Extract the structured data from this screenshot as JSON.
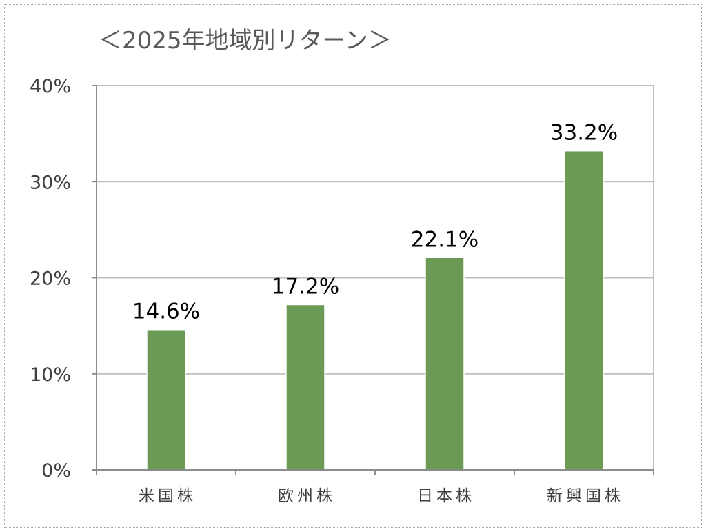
{
  "chart_data": {
    "type": "bar",
    "title": "＜2025年地域別リターン＞",
    "categories": [
      "米国株",
      "欧州株",
      "日本株",
      "新興国株"
    ],
    "values": [
      14.6,
      17.2,
      22.1,
      33.2
    ],
    "data_labels": [
      "14.6%",
      "17.2%",
      "22.1%",
      "33.2%"
    ],
    "y_ticks": [
      0,
      10,
      20,
      30,
      40
    ],
    "y_tick_labels": [
      "0%",
      "10%",
      "20%",
      "30%",
      "40%"
    ],
    "ylim": [
      0,
      40
    ],
    "xlabel": "",
    "ylabel": "",
    "grid": true,
    "legend": "none",
    "bar_color": "#6a9a53",
    "grid_color": "#bfbfbf",
    "axis_color": "#8c8c8c"
  }
}
